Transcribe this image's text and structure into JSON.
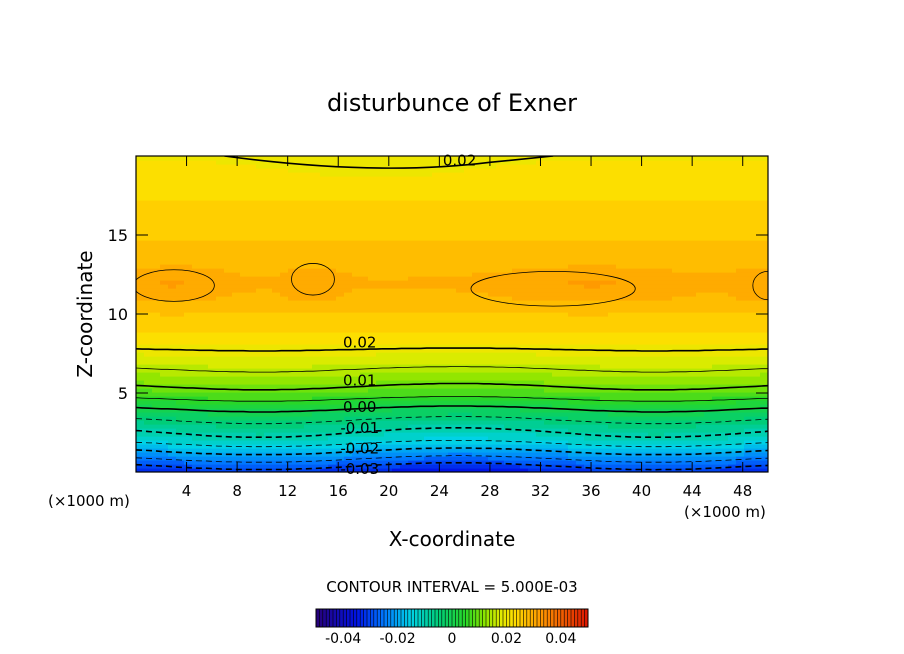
{
  "chart_data": {
    "type": "heatmap",
    "title": "disturbunce of Exner",
    "xlabel": "X-coordinate",
    "ylabel": "Z-coordinate",
    "x_unit": "(×1000 m)",
    "y_unit": "(×1000 m)",
    "xlim": [
      0,
      50
    ],
    "ylim": [
      0,
      20
    ],
    "x_ticks": [
      4,
      8,
      12,
      16,
      20,
      24,
      28,
      32,
      36,
      40,
      44,
      48
    ],
    "y_ticks": [
      5,
      10,
      15
    ],
    "contour_interval_text": "CONTOUR INTERVAL = 5.000E-03",
    "contour_interval": 0.005,
    "colorbar": {
      "min": -0.05,
      "max": 0.05,
      "ticks": [
        "-0.04",
        "-0.02",
        "0",
        "0.02",
        "0.04"
      ],
      "tick_values": [
        -0.04,
        -0.02,
        0,
        0.02,
        0.04
      ]
    },
    "contour_labels": [
      {
        "text": "0.02",
        "x": 25.6,
        "z": 19.7
      },
      {
        "text": "0.02",
        "x": 17.7,
        "z": 8.2
      },
      {
        "text": "0.01",
        "x": 17.7,
        "z": 5.8
      },
      {
        "text": "0.00",
        "x": 17.7,
        "z": 4.1
      },
      {
        "text": "-0.01",
        "x": 17.7,
        "z": 2.8
      },
      {
        "text": "-0.02",
        "x": 17.7,
        "z": 1.5
      },
      {
        "text": "-0.03",
        "x": 17.7,
        "z": 0.2
      }
    ],
    "vertical_profile": {
      "z": [
        0.0,
        1.0,
        2.0,
        3.0,
        4.0,
        5.0,
        6.0,
        7.0,
        8.0,
        9.0,
        10.0,
        11.0,
        12.0,
        13.0,
        14.0,
        15.0,
        16.0,
        17.0,
        18.0,
        19.0,
        20.0
      ],
      "value": [
        -0.034,
        -0.023,
        -0.013,
        -0.007,
        0.0,
        0.008,
        0.013,
        0.017,
        0.021,
        0.024,
        0.026,
        0.028,
        0.029,
        0.028,
        0.027,
        0.026,
        0.025,
        0.024,
        0.023,
        0.022,
        0.021
      ]
    },
    "grid": false
  }
}
